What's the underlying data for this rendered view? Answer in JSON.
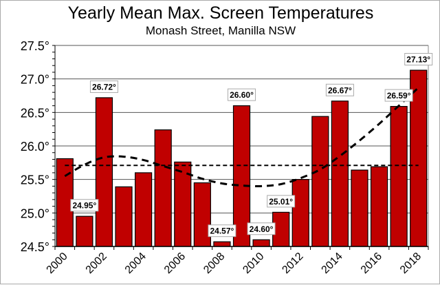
{
  "chart_data": {
    "type": "bar",
    "title": "Yearly Mean Max. Screen Temperatures",
    "subtitle": "Monash Street, Manilla NSW",
    "categories": [
      "2000",
      "2001",
      "2002",
      "2003",
      "2004",
      "2005",
      "2006",
      "2007",
      "2008",
      "2009",
      "2010",
      "2011",
      "2012",
      "2013",
      "2014",
      "2015",
      "2016",
      "2017",
      "2018"
    ],
    "values": [
      25.81,
      24.95,
      26.72,
      25.39,
      25.6,
      26.24,
      25.76,
      25.45,
      24.57,
      26.6,
      24.6,
      25.01,
      25.5,
      26.44,
      26.67,
      25.64,
      25.69,
      26.59,
      27.13
    ],
    "data_labels": {
      "2001": "24.95°",
      "2002": "26.72°",
      "2008": "24.57°",
      "2009": "26.60°",
      "2010": "24.60°",
      "2011": "25.01°",
      "2014": "26.67°",
      "2017": "26.59°",
      "2018": "27.13°"
    },
    "mean_line": 25.71,
    "trend_curve": [
      25.55,
      25.72,
      25.83,
      25.84,
      25.79,
      25.7,
      25.61,
      25.51,
      25.44,
      25.41,
      25.4,
      25.43,
      25.52,
      25.65,
      25.85,
      26.08,
      26.33,
      26.6,
      26.87
    ],
    "x_tick_labels": [
      "2000",
      "2002",
      "2004",
      "2006",
      "2008",
      "2010",
      "2012",
      "2014",
      "2016",
      "2018"
    ],
    "y_tick_labels": [
      "24.5°",
      "25.0°",
      "25.5°",
      "26.0°",
      "26.5°",
      "27.0°",
      "27.5°"
    ],
    "ylim": [
      24.5,
      27.5
    ],
    "grid": true,
    "colors": {
      "bar": "#c00000",
      "grid": "#000000",
      "lines": "#000000"
    }
  }
}
